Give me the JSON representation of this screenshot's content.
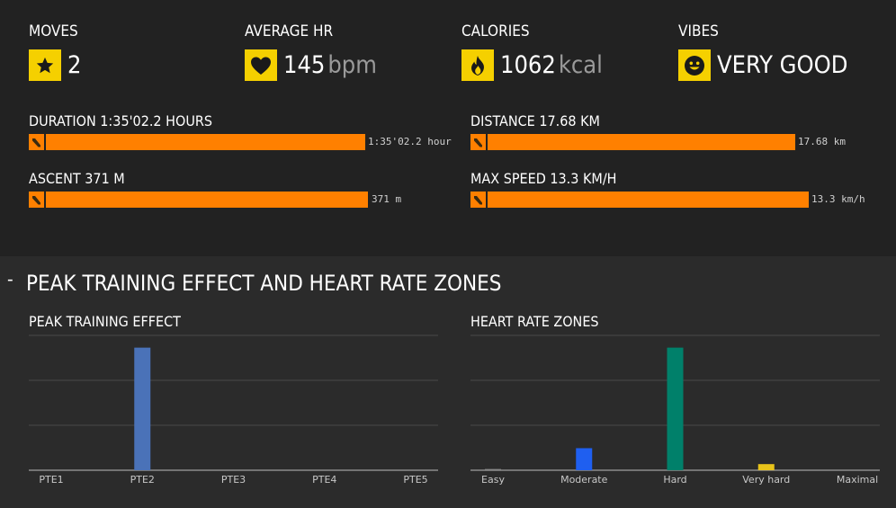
{
  "stats": [
    {
      "label": "MOVES",
      "value": "2",
      "unit": "",
      "icon": "star-icon"
    },
    {
      "label": "AVERAGE HR",
      "value": "145",
      "unit": "bpm",
      "icon": "heart-icon"
    },
    {
      "label": "CALORIES",
      "value": "1062",
      "unit": "kcal",
      "icon": "flame-icon"
    },
    {
      "label": "VIBES",
      "value": "VERY GOOD",
      "unit": "",
      "icon": "smiley-icon"
    }
  ],
  "metrics": [
    {
      "label": "DURATION 1:35'02.2 HOURS",
      "bar_text": "1:35'02.2 hour",
      "fill": 1.0
    },
    {
      "label": "DISTANCE 17.68 KM",
      "bar_text": "17.68 km",
      "fill": 1.0
    },
    {
      "label": "ASCENT 371 M",
      "bar_text": "371 m",
      "fill": 1.0
    },
    {
      "label": "MAX SPEED 13.3 KM/H",
      "bar_text": "13.3 km/h",
      "fill": 1.0
    }
  ],
  "section": {
    "toggle": "-",
    "title": "PEAK TRAINING EFFECT AND HEART RATE ZONES"
  },
  "colors": {
    "accent": "#f5d000",
    "bar": "#ff8000"
  },
  "chart_data": [
    {
      "type": "bar",
      "title": "PEAK TRAINING EFFECT",
      "categories": [
        "PTE1",
        "PTE2",
        "PTE3",
        "PTE4",
        "PTE5"
      ],
      "values": [
        0,
        1,
        0,
        0,
        0
      ],
      "colors": [
        "#4a72b8",
        "#4a72b8",
        "#4a72b8",
        "#4a72b8",
        "#4a72b8"
      ],
      "ylim": [
        0,
        1.1
      ],
      "grid": true
    },
    {
      "type": "bar",
      "title": "HEART RATE ZONES",
      "categories": [
        "Easy",
        "Moderate",
        "Hard",
        "Very hard",
        "Maximal"
      ],
      "values": [
        0.01,
        0.18,
        1,
        0.05,
        0
      ],
      "colors": [
        "#8a8a8a",
        "#1f5ff0",
        "#00806a",
        "#e8c31a",
        "#888888"
      ],
      "ylim": [
        0,
        1.1
      ],
      "grid": true
    }
  ]
}
